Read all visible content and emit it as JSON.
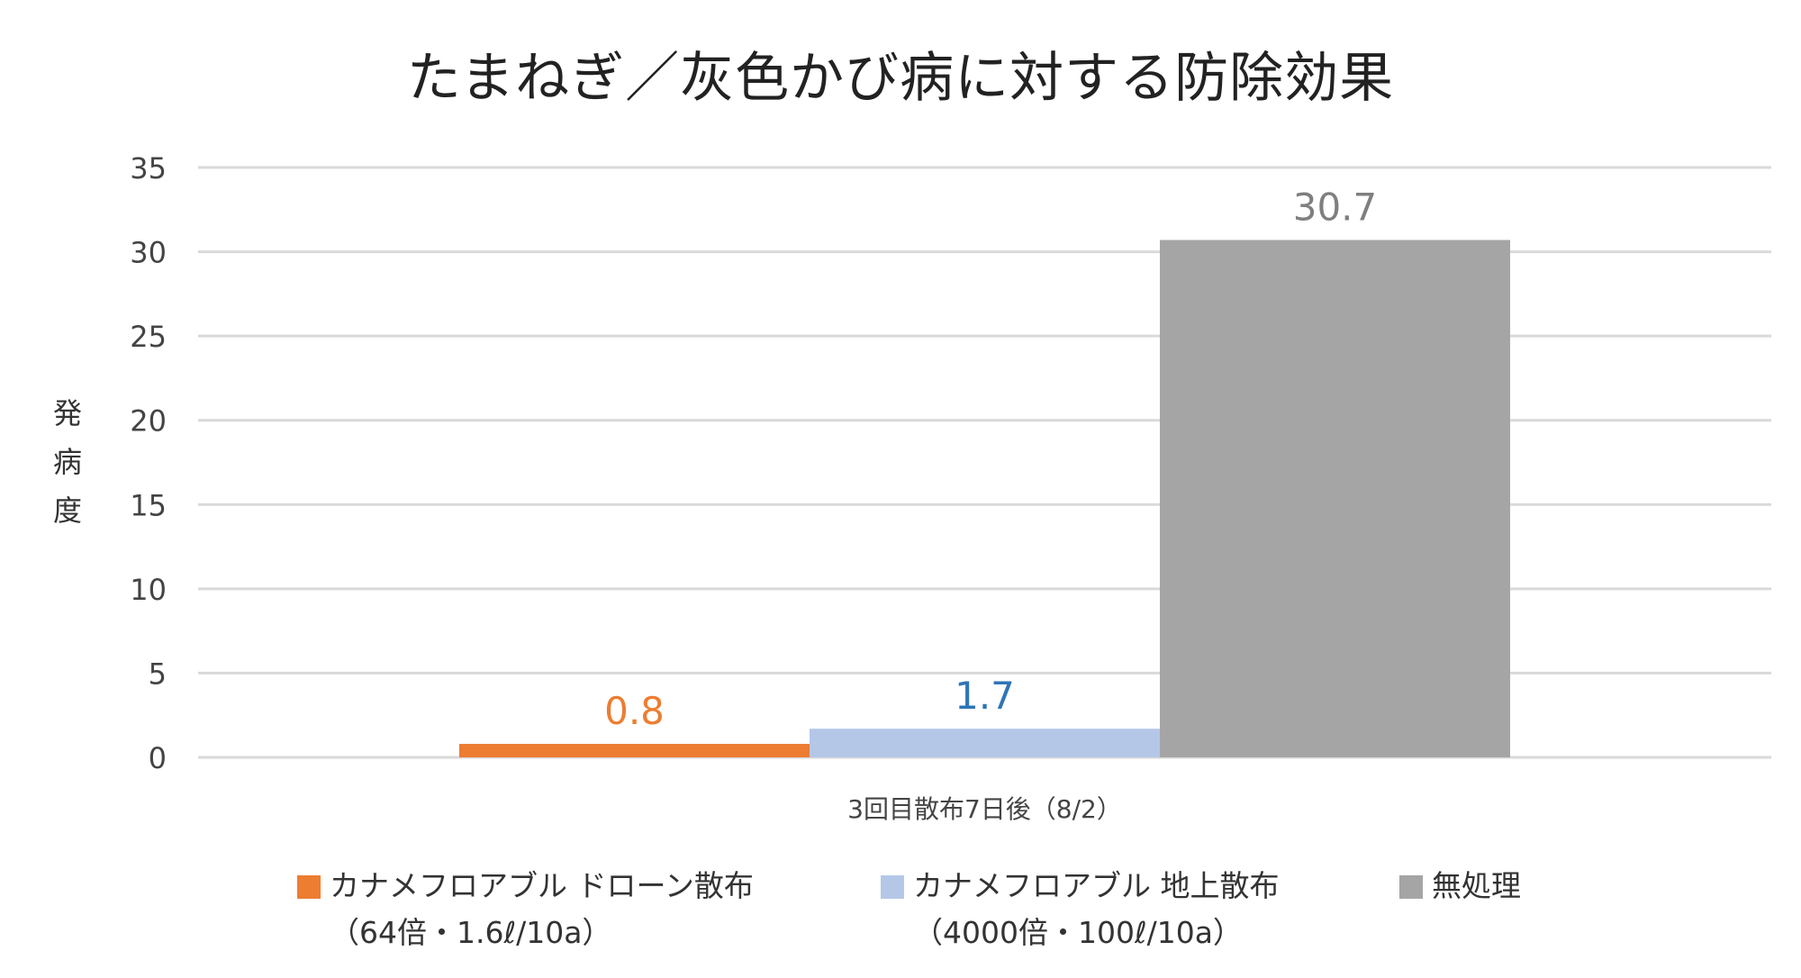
{
  "chart_data": {
    "type": "bar",
    "title": "たまねぎ／灰色かび病に対する防除効果",
    "ylabel": "発病度",
    "xlabel": "",
    "categories": [
      "3回目散布7日後（8/2）"
    ],
    "ylim": [
      0,
      35
    ],
    "yticks": [
      0,
      5,
      10,
      15,
      20,
      25,
      30,
      35
    ],
    "grid": true,
    "legend_position": "bottom",
    "series": [
      {
        "name": "カナメフロアブル ドローン散布（64倍・1.6ℓ/10a）",
        "legend_line1": "カナメフロアブル ドローン散布",
        "legend_line2": "（64倍・1.6ℓ/10a）",
        "values": [
          0.8
        ],
        "labels": [
          "0.8"
        ],
        "color": "#ED7D31",
        "label_color": "#ED7D31"
      },
      {
        "name": "カナメフロアブル 地上散布（4000倍・100ℓ/10a）",
        "legend_line1": "カナメフロアブル 地上散布",
        "legend_line2": "（4000倍・100ℓ/10a）",
        "values": [
          1.7
        ],
        "labels": [
          "1.7"
        ],
        "color": "#B4C7E7",
        "label_color": "#2E75B6"
      },
      {
        "name": "無処理",
        "legend_line1": "無処理",
        "legend_line2": "",
        "values": [
          30.7
        ],
        "labels": [
          "30.7"
        ],
        "color": "#A5A5A5",
        "label_color": "#7F7F7F"
      }
    ]
  }
}
